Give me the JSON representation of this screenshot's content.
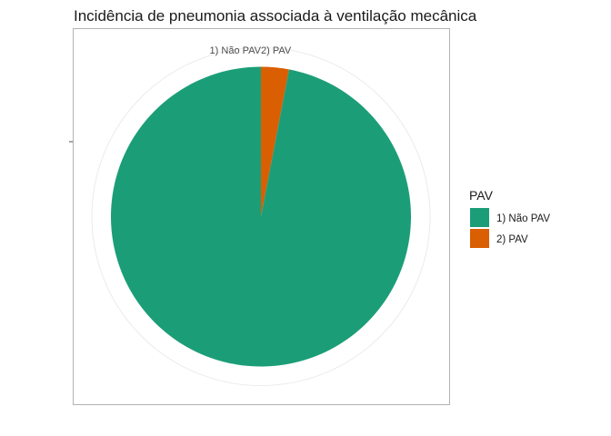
{
  "chart_data": {
    "type": "pie",
    "title": "Incidência de pneumonia associada à ventilação mecânica",
    "legend_title": "PAV",
    "legend_position": "right",
    "categories": [
      "1) Não PAV",
      "2) PAV"
    ],
    "values": [
      97,
      3
    ],
    "colors": [
      "#1b9e77",
      "#d95f02"
    ],
    "tick_labels": [
      "1) Não PAV",
      "2) PAV"
    ],
    "panel_border": true,
    "grid": true
  }
}
